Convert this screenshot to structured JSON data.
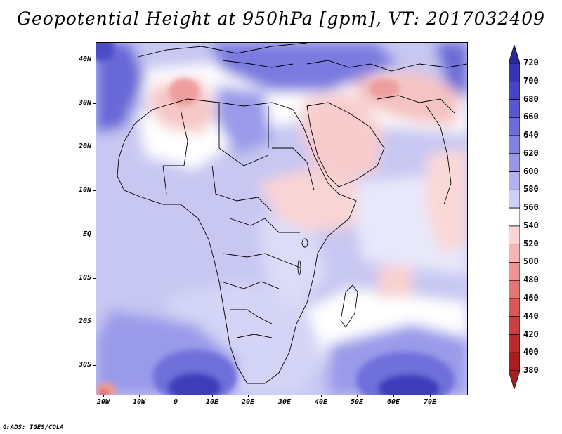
{
  "title": "Geopotential Height at 950hPa [gpm], VT: 2017032409",
  "map": {
    "lat_ticks": [
      "40N",
      "30N",
      "20N",
      "10N",
      "EQ",
      "10S",
      "20S",
      "30S"
    ],
    "lon_ticks": [
      "20W",
      "10W",
      "0",
      "10E",
      "20E",
      "30E",
      "40E",
      "50E",
      "60E",
      "70E"
    ],
    "lat_values": [
      40,
      30,
      20,
      10,
      0,
      -10,
      -20,
      -30
    ],
    "lon_values": [
      -20,
      -10,
      0,
      10,
      20,
      30,
      40,
      50,
      60,
      70
    ],
    "lon_range": [
      -22,
      80
    ],
    "lat_range": [
      -37,
      44
    ]
  },
  "colorbar": {
    "levels": [
      "720",
      "700",
      "680",
      "660",
      "640",
      "620",
      "600",
      "580",
      "560",
      "540",
      "520",
      "500",
      "480",
      "460",
      "440",
      "420",
      "400",
      "380"
    ],
    "colors": [
      "#2a2a9e",
      "#3535b4",
      "#4545c6",
      "#5858d2",
      "#6c6cdc",
      "#8282e4",
      "#9898ea",
      "#b2b2f0",
      "#d0d0f6",
      "#ffffff",
      "#fbd4d4",
      "#f6b4b4",
      "#ee9494",
      "#e47575",
      "#d85858",
      "#ca4040",
      "#b82c2c",
      "#a81e1e"
    ],
    "top_color": "#2a2a9e",
    "bottom_color": "#a81e1e"
  },
  "colors": {
    "field_base": "#c9c9f4",
    "high_blue": "#4848c8",
    "low_red": "#f3b9b9"
  },
  "credit": "GrADS: IGES/COLA"
}
